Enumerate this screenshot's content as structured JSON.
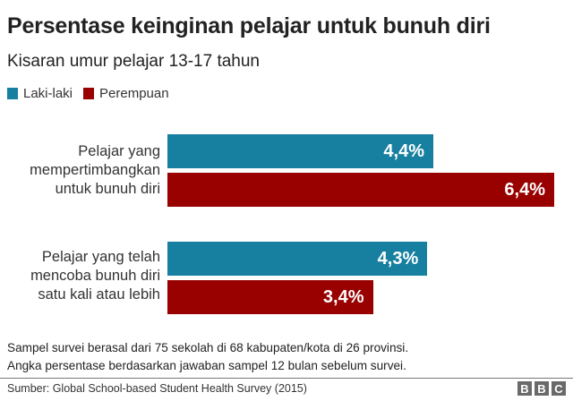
{
  "header": {
    "title": "Persentase keinginan pelajar untuk bunuh diri",
    "subtitle": "Kisaran umur pelajar 13-17 tahun"
  },
  "legend": [
    {
      "label": "Laki-laki",
      "color": "#1780a1"
    },
    {
      "label": "Perempuan",
      "color": "#990000"
    }
  ],
  "chart_data": {
    "type": "bar",
    "orientation": "horizontal",
    "title": "Persentase keinginan pelajar untuk bunuh diri",
    "subtitle": "Kisaran umur pelajar 13-17 tahun",
    "categories": [
      "Pelajar yang mempertimbangkan untuk bunuh diri",
      "Pelajar yang telah mencoba bunuh diri satu kali atau lebih"
    ],
    "series": [
      {
        "name": "Laki-laki",
        "color": "#1780a1",
        "values": [
          4.4,
          4.3
        ],
        "labels": [
          "4,4%",
          "4,3%"
        ]
      },
      {
        "name": "Perempuan",
        "color": "#990000",
        "values": [
          6.4,
          3.4
        ],
        "labels": [
          "6,4%",
          "3,4%"
        ]
      }
    ],
    "xlabel": "",
    "ylabel": "",
    "unit": "%",
    "grid": false,
    "legend_position": "top-left"
  },
  "groups": [
    {
      "label": "Pelajar yang\nmempertimbangkan\nuntuk bunuh diri",
      "bars": [
        {
          "series": "Laki-laki",
          "value": 4.4,
          "label": "4,4%"
        },
        {
          "series": "Perempuan",
          "value": 6.4,
          "label": "6,4%"
        }
      ]
    },
    {
      "label": "Pelajar yang telah\nmencoba bunuh diri\nsatu kali atau lebih",
      "bars": [
        {
          "series": "Laki-laki",
          "value": 4.3,
          "label": "4,3%"
        },
        {
          "series": "Perempuan",
          "value": 3.4,
          "label": "3,4%"
        }
      ]
    }
  ],
  "notes": {
    "line1": "Sampel survei berasal dari 75 sekolah di 68 kabupaten/kota di 26 provinsi.",
    "line2": "Angka persentase berdasarkan jawaban sampel 12 bulan sebelum survei."
  },
  "footer": {
    "source": "Sumber: Global School-based Student Health Survey (2015)",
    "logo": [
      "B",
      "B",
      "C"
    ]
  }
}
